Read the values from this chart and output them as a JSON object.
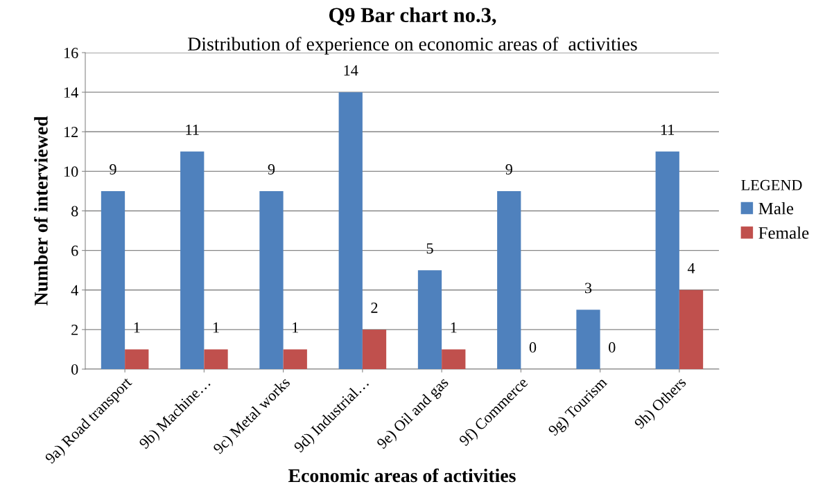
{
  "chart_data": {
    "type": "bar",
    "title": "Q9 Bar chart no.3,",
    "subtitle": "Distribution of experience on economic areas of  activities",
    "xlabel": "Economic areas of activities",
    "ylabel": "Number of interviewed",
    "legend_title": "LEGEND",
    "categories": [
      "9a) Road transport",
      "9b) Machine…",
      "9c) Metal works",
      "9d) Industrial…",
      "9e) Oil and gas",
      "9f) Commerce",
      "9g) Tourism",
      "9h) Others"
    ],
    "series": [
      {
        "name": "Male",
        "color": "#4f81bd",
        "values": [
          9,
          11,
          9,
          14,
          5,
          9,
          3,
          11
        ]
      },
      {
        "name": "Female",
        "color": "#c0504d",
        "values": [
          1,
          1,
          1,
          2,
          1,
          0,
          0,
          4
        ]
      }
    ],
    "ylim": [
      0,
      16
    ],
    "yticks": [
      0,
      2,
      4,
      6,
      8,
      10,
      12,
      14,
      16
    ],
    "grid": "y",
    "legend": "right",
    "data_labels": true
  }
}
